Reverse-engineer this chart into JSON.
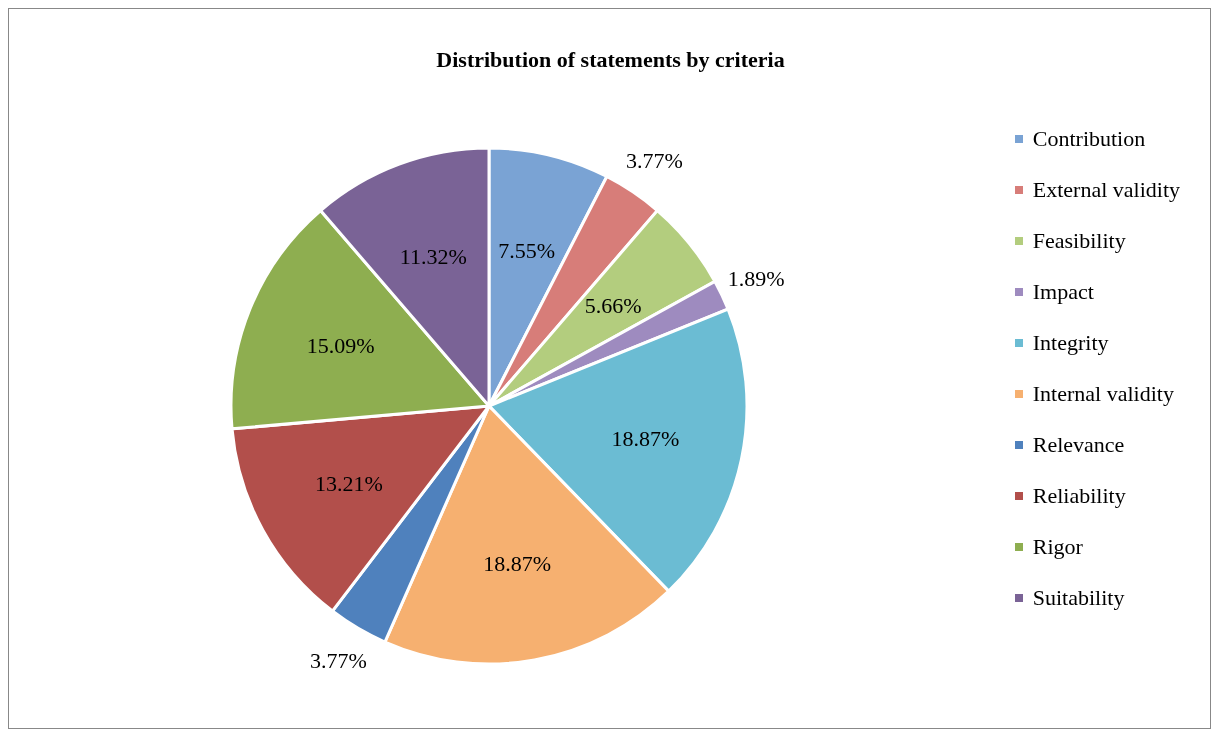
{
  "chart_data": {
    "type": "pie",
    "title": "Distribution of statements by criteria",
    "categories": [
      "Contribution",
      "External validity",
      "Feasibility",
      "Impact",
      "Integrity",
      "Internal validity",
      "Relevance",
      "Reliability",
      "Rigor",
      "Suitability"
    ],
    "values": [
      7.55,
      3.77,
      5.66,
      1.89,
      18.87,
      18.87,
      3.77,
      13.21,
      15.09,
      11.32
    ],
    "value_labels": [
      "7.55%",
      "3.77%",
      "5.66%",
      "1.89%",
      "18.87%",
      "18.87%",
      "3.77%",
      "13.21%",
      "15.09%",
      "11.32%"
    ],
    "colors": [
      "#7aa3d4",
      "#d77d79",
      "#b3cd7e",
      "#9e8bbf",
      "#6bbcd3",
      "#f6b070",
      "#4f81bd",
      "#b24f4b",
      "#8eae50",
      "#7a6396"
    ],
    "legend": "right"
  }
}
